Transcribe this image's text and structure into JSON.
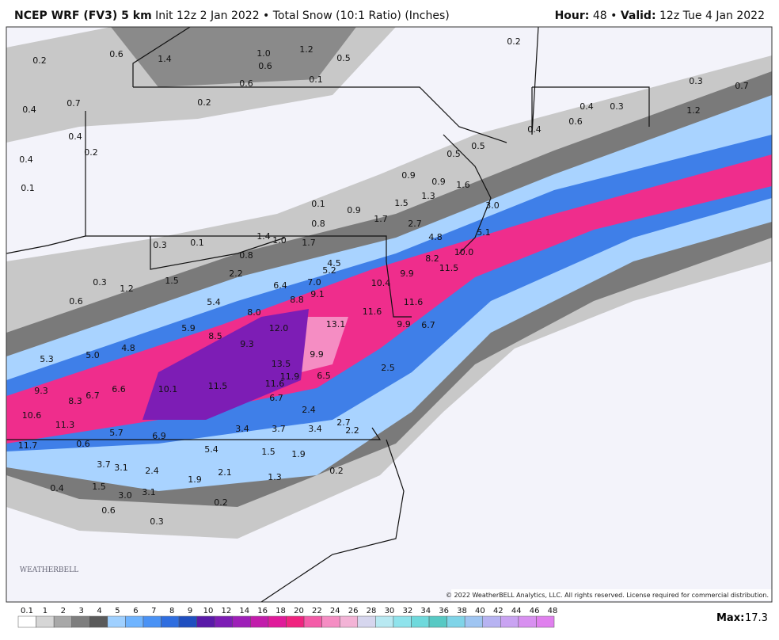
{
  "header": {
    "model": "NCEP WRF (FV3) 5 km",
    "description": "Init 12z 2 Jan 2022 • Total Snow (10:1 Ratio) (Inches)",
    "hour_label": "Hour:",
    "hour": "48 •",
    "valid_label": "Valid:",
    "valid": "12z Tue 4 Jan 2022"
  },
  "map": {
    "labels": [
      "0.2",
      "0.6",
      "1.4",
      "1.0",
      "1.2",
      "0.6",
      "0.5",
      "0.2",
      "0.6",
      "0.1",
      "0.7",
      "0.4",
      "0.2",
      "0.4",
      "0.2",
      "0.4",
      "0.1",
      "0.4",
      "0.3",
      "0.3",
      "0.7",
      "1.2",
      "0.6",
      "0.4",
      "0.5",
      "0.5",
      "0.9",
      "1.3",
      "1.6",
      "0.9",
      "3.0",
      "1.5",
      "0.1",
      "0.9",
      "1.7",
      "0.8",
      "2.7",
      "4.8",
      "5.1",
      "1.0",
      "1.4",
      "1.7",
      "0.3",
      "0.1",
      "0.8",
      "8.2",
      "10.0",
      "11.5",
      "4.5",
      "5.2",
      "9.9",
      "10.4",
      "6.4",
      "7.0",
      "9.1",
      "0.3",
      "1.2",
      "1.5",
      "2.2",
      "0.6",
      "5.4",
      "8.0",
      "8.8",
      "11.6",
      "11.6",
      "13.1",
      "12.0",
      "9.9",
      "6.7",
      "5.9",
      "8.5",
      "9.3",
      "4.8",
      "5.3",
      "5.0",
      "9.9",
      "13.5",
      "11.9",
      "11.6",
      "6.5",
      "2.5",
      "9.3",
      "8.3",
      "6.7",
      "6.6",
      "10.1",
      "11.5",
      "6.7",
      "2.4",
      "10.6",
      "11.3",
      "5.7",
      "6.9",
      "3.4",
      "3.7",
      "3.4",
      "2.2",
      "2.7",
      "11.7",
      "0.6",
      "5.4",
      "1.5",
      "1.9",
      "3.7",
      "3.1",
      "2.4",
      "1.5",
      "0.4",
      "3.0",
      "3.1",
      "1.9",
      "2.1",
      "1.3",
      "0.2",
      "0.6",
      "0.3",
      "0.2"
    ],
    "logo": "WEATHERBELL",
    "copyright": "© 2022 WeatherBELL Analytics, LLC. All rights reserved. License required for commercial distribution."
  },
  "colorbar": {
    "labels": [
      "0.1",
      "1",
      "2",
      "3",
      "4",
      "5",
      "6",
      "7",
      "8",
      "9",
      "10",
      "12",
      "14",
      "16",
      "18",
      "20",
      "22",
      "24",
      "26",
      "28",
      "30",
      "32",
      "34",
      "36",
      "38",
      "40",
      "42",
      "44",
      "46",
      "48"
    ],
    "colors": [
      "#ffffff",
      "#d6d6d6",
      "#a8a8a8",
      "#7e7e7e",
      "#5a5a5a",
      "#9fd0ff",
      "#6fb4ff",
      "#4a92f5",
      "#2f6ee0",
      "#1f4fc0",
      "#5a1aa8",
      "#7d1db5",
      "#9e1fb8",
      "#c21cab",
      "#e01a9a",
      "#f0237f",
      "#f45ca8",
      "#f58dc3",
      "#f3b3d6",
      "#d6d6ee",
      "#b8e9f2",
      "#8fe3ec",
      "#6fd9dc",
      "#57c9c4",
      "#7fd4e8",
      "#9fc5f2",
      "#b7b3f2",
      "#c9a3f2",
      "#d890f0",
      "#e080ee"
    ],
    "max_label": "Max:",
    "max": "17.3"
  }
}
